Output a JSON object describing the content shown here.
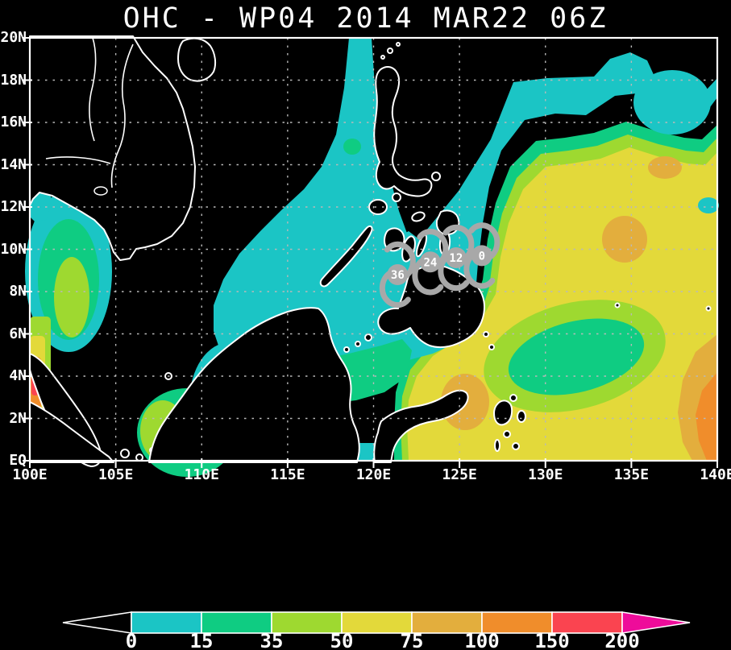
{
  "title": "OHC - WP04 2014 MAR22 06Z",
  "product": {
    "parameter": "OHC",
    "storm_id": "WP04",
    "datetime": "2014 MAR22 06Z"
  },
  "axes": {
    "lat_labels": [
      "20N",
      "18N",
      "16N",
      "14N",
      "12N",
      "10N",
      "8N",
      "6N",
      "4N",
      "2N",
      "EQ"
    ],
    "lon_labels": [
      "100E",
      "105E",
      "110E",
      "115E",
      "120E",
      "125E",
      "130E",
      "135E",
      "140E"
    ],
    "lon_range": [
      100,
      140
    ],
    "lat_range": [
      0,
      20
    ],
    "grid_lat_step_deg": 2,
    "grid_lon_step_deg": 5
  },
  "colorbar": {
    "tick_labels": [
      "0",
      "15",
      "35",
      "50",
      "75",
      "100",
      "150",
      "200"
    ],
    "segment_colors": [
      "#1bc5c5",
      "#0fcc82",
      "#9ed930",
      "#e3d93a",
      "#e3ae3d",
      "#f08d2b",
      "#fa4450"
    ],
    "under_arrow_color": "#000000",
    "over_arrow_color": "#ee0c9a"
  },
  "storm_track": {
    "symbol": "tropical-cyclone",
    "symbol_color": "#a8a8a8",
    "label_color": "#ffffff",
    "points": [
      {
        "label": "36",
        "lon": 121.4,
        "lat": 8.8
      },
      {
        "label": "24",
        "lon": 123.3,
        "lat": 9.4
      },
      {
        "label": "12",
        "lon": 124.8,
        "lat": 9.6
      },
      {
        "label": "0",
        "lon": 126.3,
        "lat": 9.7
      }
    ]
  },
  "palette": {
    "teal": "#1bc5c5",
    "green": "#0fcc82",
    "yellow_green": "#9ed930",
    "yellow": "#e3d93a",
    "orange_yellow": "#e3ae3d",
    "orange": "#f08d2b",
    "red": "#fa4450",
    "magenta": "#ee0c9a",
    "grid": "#b9b9b9",
    "coast": "#ffffff",
    "land": "#000000",
    "background": "#000000"
  }
}
